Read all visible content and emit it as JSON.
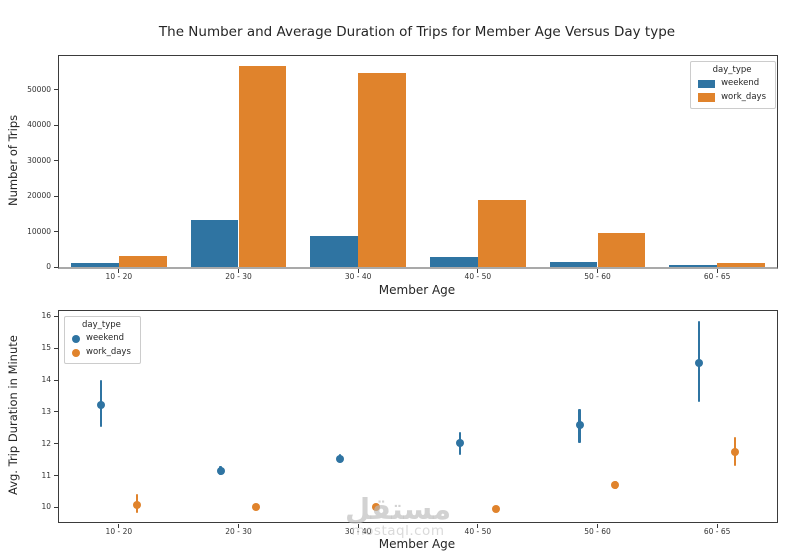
{
  "title": "The Number and Average Duration of Trips for Member Age Versus Day type",
  "legend": {
    "title": "day_type",
    "items": [
      {
        "label": "weekend",
        "color": "#2f74a2"
      },
      {
        "label": "work_days",
        "color": "#e0832c"
      }
    ]
  },
  "watermark": {
    "arabic": "مستقل",
    "latin": "mostaql.com"
  },
  "chart_data": [
    {
      "type": "bar",
      "title": "",
      "categories": [
        "10 - 20",
        "20 - 30",
        "30 - 40",
        "40 - 50",
        "50 - 60",
        "60 - 65"
      ],
      "series": [
        {
          "name": "weekend",
          "color": "#2f74a2",
          "values": [
            1000,
            13200,
            8800,
            2850,
            1350,
            450
          ]
        },
        {
          "name": "work_days",
          "color": "#e0832c",
          "values": [
            3100,
            56600,
            54700,
            18900,
            9700,
            1250
          ]
        }
      ],
      "xlabel": "Member Age",
      "ylabel": "Number of Trips",
      "ylim": [
        0,
        59500
      ],
      "yticks": [
        0,
        10000,
        20000,
        30000,
        40000,
        50000
      ],
      "grid": false,
      "legend_position": "upper-right"
    },
    {
      "type": "scatter",
      "title": "",
      "categories": [
        "10 - 20",
        "20 - 30",
        "30 - 40",
        "40 - 50",
        "50 - 60",
        "60 - 65"
      ],
      "series": [
        {
          "name": "weekend",
          "color": "#2f74a2",
          "values": [
            13.22,
            11.15,
            11.52,
            12.03,
            12.59,
            14.55
          ],
          "err_lo": [
            12.53,
            11.02,
            11.38,
            11.66,
            12.02,
            13.32
          ],
          "err_hi": [
            13.99,
            11.31,
            11.67,
            12.36,
            13.1,
            15.87
          ]
        },
        {
          "name": "work_days",
          "color": "#e0832c",
          "values": [
            10.08,
            10.02,
            10.02,
            9.95,
            10.7,
            11.73
          ],
          "err_lo": [
            9.82,
            9.97,
            9.95,
            9.89,
            10.57,
            11.31
          ],
          "err_hi": [
            10.41,
            10.08,
            10.1,
            10.02,
            10.84,
            12.2
          ]
        }
      ],
      "xlabel": "Member Age",
      "ylabel": "Avg. Trip Duration in Minute",
      "ylim": [
        9.54,
        16.17
      ],
      "yticks": [
        10,
        11,
        12,
        13,
        14,
        15,
        16
      ],
      "grid": false,
      "legend_position": "upper-left"
    }
  ]
}
